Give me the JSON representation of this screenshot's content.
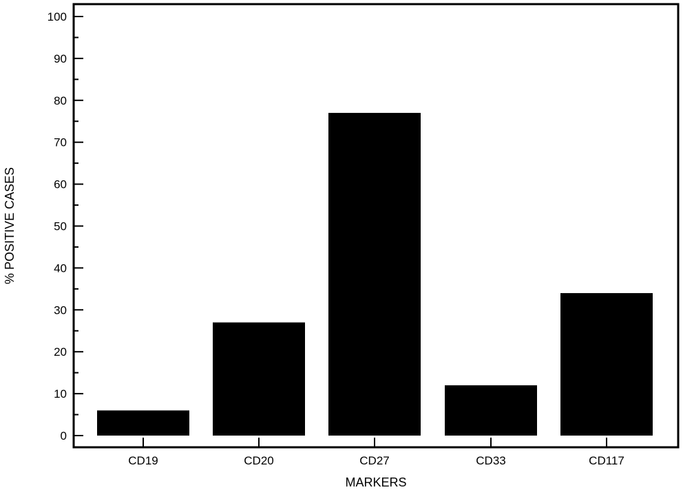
{
  "chart_data": {
    "type": "bar",
    "title": "",
    "xlabel": "MARKERS",
    "ylabel": "% POSITIVE CASES",
    "categories": [
      "CD19",
      "CD20",
      "CD27",
      "CD33",
      "CD117"
    ],
    "values": [
      6,
      27,
      77,
      12,
      34
    ],
    "ylim": [
      0,
      100
    ],
    "yticks": [
      0,
      10,
      20,
      30,
      40,
      50,
      60,
      70,
      80,
      90,
      100
    ],
    "y_minor_step": 5,
    "grid": false,
    "legend": "none",
    "bar_color": "#000000"
  }
}
